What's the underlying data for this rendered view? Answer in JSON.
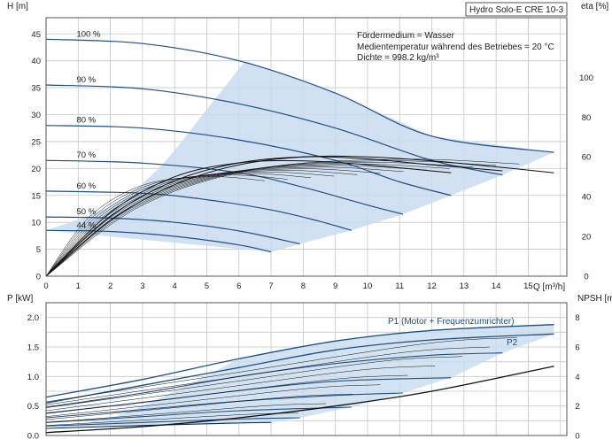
{
  "page_title": "Hydro Solo-E CRE 10-3",
  "colors": {
    "grid": "#c8c8c8",
    "frame": "#555555",
    "curve_dark": "#1d4f8a",
    "curve_black": "#111111",
    "area_fill": "#c9dcee"
  },
  "chart_data": [
    {
      "type": "line",
      "panel": "upper",
      "title": "Hydro Solo-E CRE 10-3",
      "xlabel": "Q [m³/h]",
      "ylabel_left": "H [m]",
      "ylabel_right": "eta [%]",
      "xlim": [
        0,
        16.2
      ],
      "ylim_left": [
        0,
        48
      ],
      "ylim_right": [
        0,
        130
      ],
      "x_ticks": [
        0,
        1,
        2,
        3,
        4,
        5,
        6,
        7,
        8,
        9,
        10,
        11,
        12,
        13,
        14,
        15
      ],
      "y_ticks_left": [
        0,
        5,
        10,
        15,
        20,
        25,
        30,
        35,
        40,
        45
      ],
      "y_ticks_right": [
        0,
        20,
        40,
        60,
        80,
        100
      ],
      "grid": true,
      "annotations": {
        "medium": "Fördermedium = Wasser",
        "temperature": "Medientemperatur während des Betriebes = 20 °C",
        "density": "Dichte = 998.2 kg/m³"
      },
      "speed_curves": [
        {
          "name": "100 %",
          "x": [
            0,
            3,
            6,
            9,
            12,
            15.8
          ],
          "y": [
            44,
            43.2,
            40,
            34,
            26,
            23
          ]
        },
        {
          "name": "90 %",
          "x": [
            0,
            3,
            6,
            9,
            12,
            14.2
          ],
          "y": [
            35.5,
            34.8,
            32,
            27.5,
            21.5,
            18.8
          ]
        },
        {
          "name": "80 %",
          "x": [
            0,
            3,
            6,
            9,
            11,
            12.6
          ],
          "y": [
            28,
            27.5,
            25.3,
            21.5,
            17.5,
            15
          ]
        },
        {
          "name": "70 %",
          "x": [
            0,
            3,
            6,
            8,
            10,
            11.1
          ],
          "y": [
            21.5,
            21,
            19.2,
            16.5,
            13.2,
            11.5
          ]
        },
        {
          "name": "60 %",
          "x": [
            0,
            3,
            5,
            7,
            8.5,
            9.5
          ],
          "y": [
            15.8,
            15.4,
            14.2,
            12.3,
            10.2,
            8.5
          ]
        },
        {
          "name": "50 %",
          "x": [
            0,
            2,
            4,
            6,
            7.9
          ],
          "y": [
            11,
            10.8,
            10,
            8.4,
            6
          ]
        },
        {
          "name": "44 %",
          "x": [
            0,
            2,
            4,
            6,
            7
          ],
          "y": [
            8.5,
            8.3,
            7.4,
            5.8,
            4.5
          ]
        }
      ],
      "eta_curves": [
        {
          "x": [
            0,
            2,
            4,
            6,
            8,
            10,
            12,
            14,
            15.8
          ],
          "y": [
            0,
            28,
            46,
            56,
            60,
            60,
            58,
            55,
            52
          ]
        },
        {
          "x": [
            0,
            2,
            4,
            6,
            8,
            10,
            12,
            14.2
          ],
          "y": [
            0,
            30,
            48,
            57,
            60,
            59,
            56,
            53
          ]
        },
        {
          "x": [
            0,
            2,
            4,
            6,
            8,
            10,
            12.6
          ],
          "y": [
            0,
            32,
            50,
            57,
            58,
            56,
            52
          ]
        }
      ],
      "operating_range_fill": true
    },
    {
      "type": "line",
      "panel": "lower",
      "xlabel": "",
      "ylabel_left": "P [kW]",
      "ylabel_right": "NPSH [m]",
      "xlim": [
        0,
        16.2
      ],
      "ylim_left": [
        0,
        2.25
      ],
      "ylim_right": [
        0,
        9
      ],
      "y_ticks_left": [
        0.0,
        0.5,
        1.0,
        1.5,
        2.0
      ],
      "y_ticks_left_labels": [
        "0.0",
        "0.5",
        "1.0",
        "1.5",
        "2.0"
      ],
      "y_ticks_right": [
        0,
        2,
        4,
        6,
        8
      ],
      "grid": true,
      "legend": [
        {
          "name": "P1 (Motor + Frequenzumrichter)"
        },
        {
          "name": "P2"
        }
      ],
      "power_curves": [
        {
          "name": "P1",
          "x": [
            0,
            3,
            6,
            9,
            12,
            15.8
          ],
          "y": [
            0.65,
            0.95,
            1.3,
            1.6,
            1.78,
            1.88
          ]
        },
        {
          "name": "P2",
          "x": [
            0,
            3,
            6,
            9,
            12,
            15.8
          ],
          "y": [
            0.55,
            0.85,
            1.15,
            1.45,
            1.62,
            1.72
          ]
        },
        {
          "x": [
            0,
            3,
            6,
            9,
            12,
            14.2
          ],
          "y": [
            0.48,
            0.72,
            1.0,
            1.22,
            1.36,
            1.4
          ]
        },
        {
          "x": [
            0,
            3,
            6,
            9,
            12.6
          ],
          "y": [
            0.38,
            0.56,
            0.76,
            0.92,
            0.98
          ]
        },
        {
          "x": [
            0,
            3,
            6,
            9,
            11.1
          ],
          "y": [
            0.3,
            0.44,
            0.58,
            0.68,
            0.72
          ]
        },
        {
          "x": [
            0,
            3,
            6,
            9.5
          ],
          "y": [
            0.22,
            0.32,
            0.42,
            0.48
          ]
        },
        {
          "x": [
            0,
            3,
            6,
            7.9
          ],
          "y": [
            0.16,
            0.22,
            0.28,
            0.3
          ]
        },
        {
          "x": [
            0,
            3,
            6,
            7
          ],
          "y": [
            0.12,
            0.17,
            0.21,
            0.22
          ]
        }
      ],
      "npsh_curve": {
        "x": [
          0,
          3,
          6,
          9,
          12,
          15.8
        ],
        "y": [
          0.2,
          0.6,
          1.2,
          2.0,
          3.0,
          4.7
        ]
      }
    }
  ]
}
